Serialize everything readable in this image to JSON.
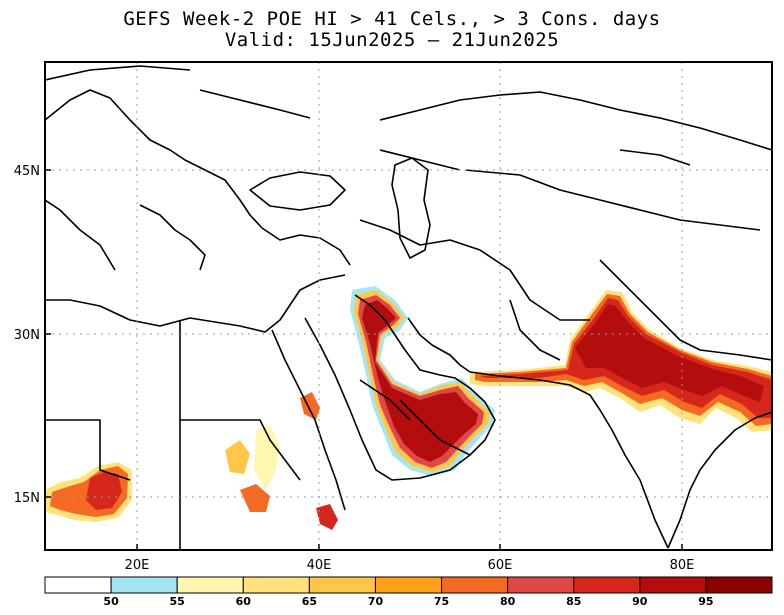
{
  "title": {
    "line1": "GEFS Week-2 POE HI > 41 Cels., > 3 Cons. days",
    "line2": "Valid: 15Jun2025 – 21Jun2025"
  },
  "axes": {
    "lon_ticks": [
      "20E",
      "40E",
      "60E",
      "80E"
    ],
    "lat_ticks": [
      "45N",
      "30N",
      "15N"
    ]
  },
  "colorbar": {
    "levels": [
      "50",
      "55",
      "60",
      "65",
      "70",
      "75",
      "80",
      "85",
      "90",
      "95"
    ],
    "colors": [
      "#ffffff",
      "#a6e6f2",
      "#fff7b0",
      "#ffe27a",
      "#ffc64a",
      "#ff9f1c",
      "#f56a22",
      "#e04848",
      "#d6271c",
      "#b30d0d",
      "#8c0000"
    ]
  },
  "map_colors": {
    "land": "#ffffff",
    "border": "#000000",
    "grid": "#9a9a9a"
  }
}
